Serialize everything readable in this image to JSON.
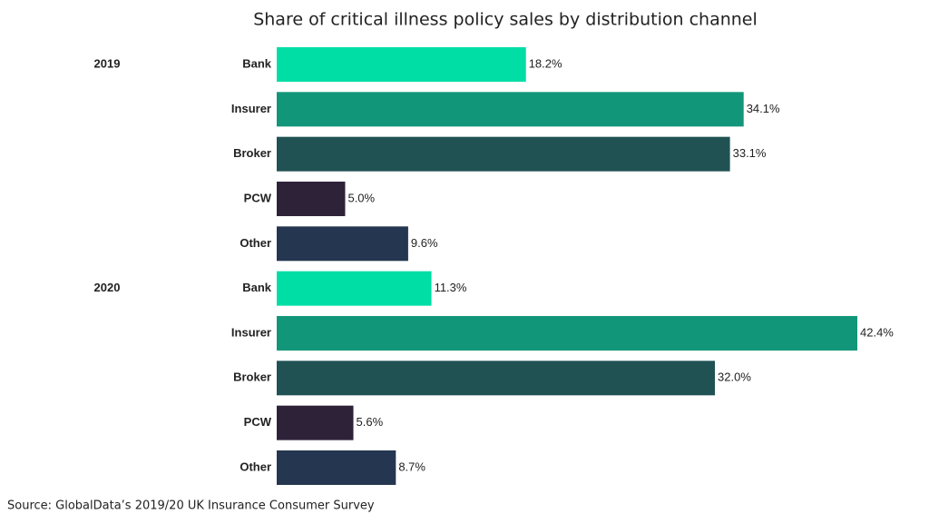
{
  "chart_data": {
    "type": "hbar",
    "title": "Share of critical illness policy sales by distribution channel",
    "source": "Source: GlobalData’s 2019/20 UK Insurance Consumer Survey",
    "colors": [
      "#00dda5",
      "#12967a",
      "#205254",
      "#2e2239",
      "#243650"
    ],
    "groups": [
      {
        "label": "2019",
        "categories": [
          "Bank",
          "Insurer",
          "Broker",
          "PCW",
          "Other"
        ],
        "values": [
          18.2,
          34.1,
          33.1,
          5.0,
          9.6
        ],
        "value_labels": [
          "18.2%",
          "34.1%",
          "33.1%",
          "5.0%",
          "9.6%"
        ]
      },
      {
        "label": "2020",
        "categories": [
          "Bank",
          "Insurer",
          "Broker",
          "PCW",
          "Other"
        ],
        "values": [
          11.3,
          42.4,
          32.0,
          5.6,
          8.7
        ],
        "value_labels": [
          "11.3%",
          "42.4%",
          "32.0%",
          "5.6%",
          "8.7%"
        ]
      }
    ]
  }
}
